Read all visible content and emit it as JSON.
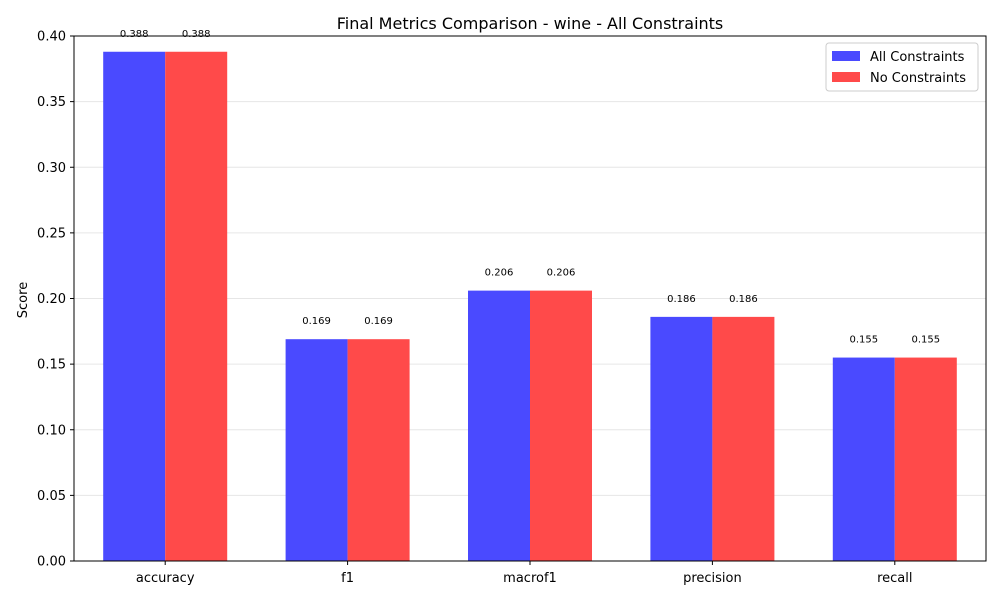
{
  "chart_data": {
    "type": "bar",
    "title": "Final Metrics Comparison - wine - All Constraints",
    "xlabel": "",
    "ylabel": "Score",
    "categories": [
      "accuracy",
      "f1",
      "macrof1",
      "precision",
      "recall"
    ],
    "series": [
      {
        "name": "All Constraints",
        "color": "#4a4aff",
        "values": [
          0.388,
          0.169,
          0.206,
          0.186,
          0.155
        ],
        "labels": [
          "0.388",
          "0.169",
          "0.206",
          "0.186",
          "0.155"
        ]
      },
      {
        "name": "No Constraints",
        "color": "#ff4a4a",
        "values": [
          0.388,
          0.169,
          0.206,
          0.186,
          0.155
        ],
        "labels": [
          "0.388",
          "0.169",
          "0.206",
          "0.186",
          "0.155"
        ]
      }
    ],
    "ylim": [
      0,
      0.4
    ],
    "yticks": [
      "0.00",
      "0.05",
      "0.10",
      "0.15",
      "0.20",
      "0.25",
      "0.30",
      "0.35",
      "0.40"
    ],
    "ytick_values": [
      0,
      0.05,
      0.1,
      0.15,
      0.2,
      0.25,
      0.3,
      0.35,
      0.4
    ],
    "grid": "y",
    "legend_position": "top-right"
  }
}
